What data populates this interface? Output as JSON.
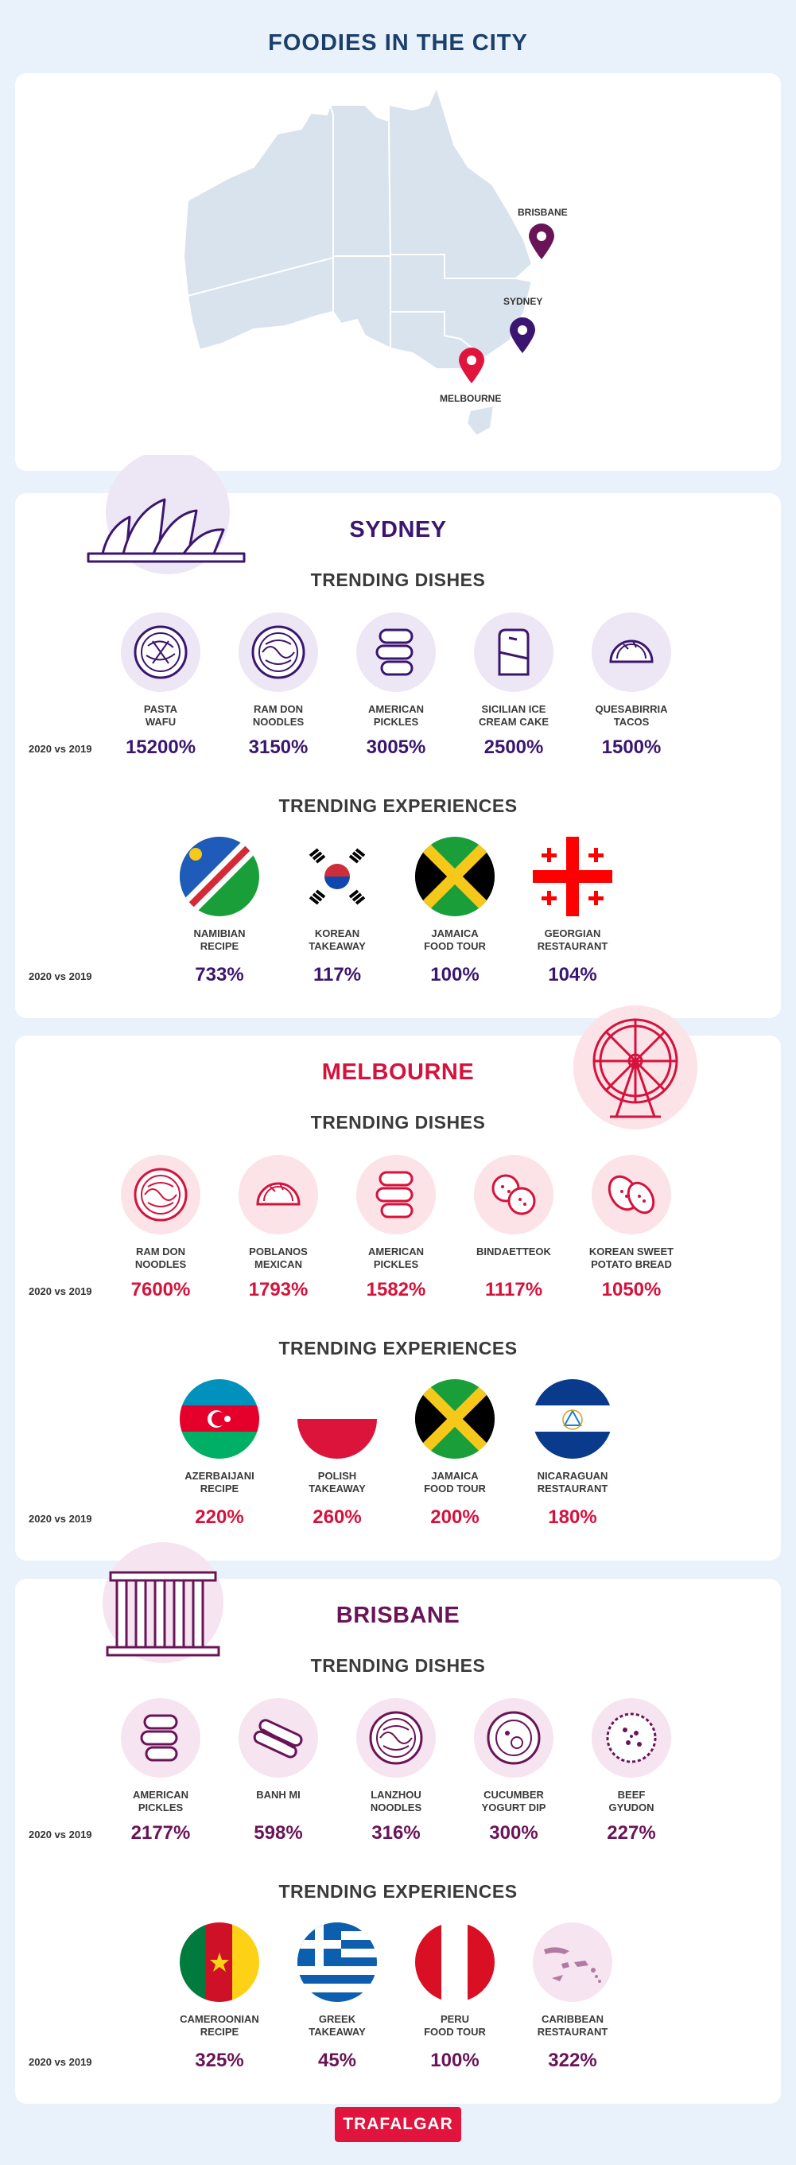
{
  "title": "FOODIES IN THE CITY",
  "colors": {
    "background": "#e9f1fa",
    "sydney": "#3b1670",
    "melbourne": "#d6123c",
    "brisbane": "#6a1458",
    "map_land": "#d9e3ed",
    "logo": "#e0143c"
  },
  "map": {
    "labels": {
      "brisbane": "BRISBANE",
      "sydney": "SYDNEY",
      "melbourne": "MELBOURNE"
    }
  },
  "comparison_label": "2020 vs 2019",
  "section_titles": {
    "dishes": "TRENDING DISHES",
    "experiences": "TRENDING EXPERIENCES"
  },
  "cities": {
    "sydney": {
      "name": "SYDNEY",
      "landmark_icon": "opera-house-icon",
      "dishes": [
        {
          "label": "PASTA\nWAFU",
          "value": "15200%",
          "icon": "noodle-bowl-icon"
        },
        {
          "label": "RAM DON\nNOODLES",
          "value": "3150%",
          "icon": "noodle-bowl-icon"
        },
        {
          "label": "AMERICAN\nPICKLES",
          "value": "3005%",
          "icon": "pickles-icon"
        },
        {
          "label": "SICILIAN ICE\nCREAM CAKE",
          "value": "2500%",
          "icon": "cake-icon"
        },
        {
          "label": "QUESABIRRIA\nTACOS",
          "value": "1500%",
          "icon": "taco-icon"
        }
      ],
      "experiences": [
        {
          "label": "NAMIBIAN\nRECIPE",
          "value": "733%",
          "icon": "namibia-flag-icon"
        },
        {
          "label": "KOREAN\nTAKEAWAY",
          "value": "117%",
          "icon": "korea-flag-icon"
        },
        {
          "label": "JAMAICA\nFOOD TOUR",
          "value": "100%",
          "icon": "jamaica-flag-icon"
        },
        {
          "label": "GEORGIAN\nRESTAURANT",
          "value": "104%",
          "icon": "georgia-flag-icon"
        }
      ]
    },
    "melbourne": {
      "name": "MELBOURNE",
      "landmark_icon": "ferris-wheel-icon",
      "dishes": [
        {
          "label": "RAM DON\nNOODLES",
          "value": "7600%",
          "icon": "noodle-bowl-icon"
        },
        {
          "label": "POBLANOS\nMEXICAN",
          "value": "1793%",
          "icon": "taco-icon"
        },
        {
          "label": "AMERICAN\nPICKLES",
          "value": "1582%",
          "icon": "pickles-icon"
        },
        {
          "label": "BINDAETTEOK",
          "value": "1117%",
          "icon": "pancake-icon"
        },
        {
          "label": "KOREAN SWEET\nPOTATO BREAD",
          "value": "1050%",
          "icon": "bread-icon"
        }
      ],
      "experiences": [
        {
          "label": "AZERBAIJANI\nRECIPE",
          "value": "220%",
          "icon": "azerbaijan-flag-icon"
        },
        {
          "label": "POLISH\nTAKEAWAY",
          "value": "260%",
          "icon": "poland-flag-icon"
        },
        {
          "label": "JAMAICA\nFOOD TOUR",
          "value": "200%",
          "icon": "jamaica-flag-icon"
        },
        {
          "label": "NICARAGUAN\nRESTAURANT",
          "value": "180%",
          "icon": "nicaragua-flag-icon"
        }
      ]
    },
    "brisbane": {
      "name": "BRISBANE",
      "landmark_icon": "city-hall-icon",
      "dishes": [
        {
          "label": "AMERICAN\nPICKLES",
          "value": "2177%",
          "icon": "pickles-icon"
        },
        {
          "label": "BANH MI",
          "value": "598%",
          "icon": "sandwich-icon"
        },
        {
          "label": "LANZHOU\nNOODLES",
          "value": "316%",
          "icon": "noodle-bowl-icon"
        },
        {
          "label": "CUCUMBER\nYOGURT DIP",
          "value": "300%",
          "icon": "dip-bowl-icon"
        },
        {
          "label": "BEEF\nGYUDON",
          "value": "227%",
          "icon": "rice-bowl-icon"
        }
      ],
      "experiences": [
        {
          "label": "CAMEROONIAN\nRECIPE",
          "value": "325%",
          "icon": "cameroon-flag-icon"
        },
        {
          "label": "GREEK\nTAKEAWAY",
          "value": "45%",
          "icon": "greece-flag-icon"
        },
        {
          "label": "PERU\nFOOD TOUR",
          "value": "100%",
          "icon": "peru-flag-icon"
        },
        {
          "label": "CARIBBEAN\nRESTAURANT",
          "value": "322%",
          "icon": "caribbean-map-icon"
        }
      ]
    }
  },
  "brand": "TRAFALGAR"
}
